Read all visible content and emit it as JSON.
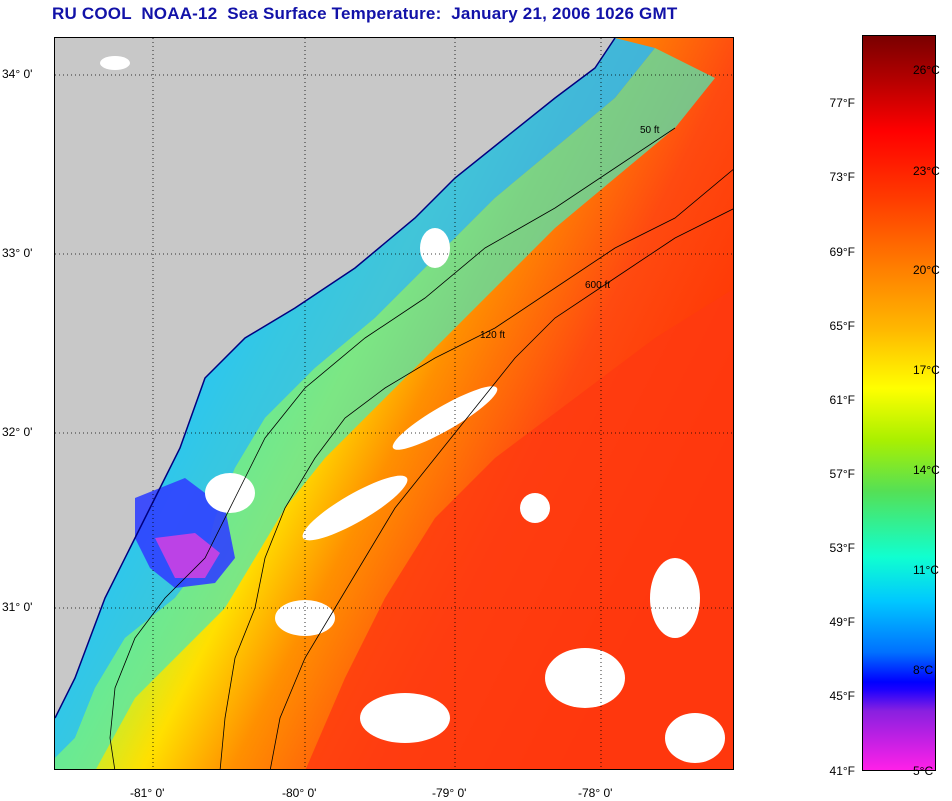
{
  "title": "RU COOL  NOAA-12  Sea Surface Temperature:  January 21, 2006 1026 GMT",
  "map": {
    "latitude_labels": [
      "34° 0'",
      "33° 0'",
      "32° 0'",
      "31° 0'"
    ],
    "longitude_labels": [
      "-81° 0'",
      "-80° 0'",
      "-79° 0'",
      "-78° 0'"
    ],
    "isobath_labels": [
      "50 ft",
      "120 ft",
      "600 ft"
    ],
    "colors": {
      "land": "#c8c8c8",
      "cloud": "#ffffff",
      "coast": "#000080",
      "contour": "#000000",
      "grid": "#000000"
    }
  },
  "colorbar": {
    "fahrenheit_labels": [
      "77°F",
      "73°F",
      "69°F",
      "65°F",
      "61°F",
      "57°F",
      "53°F",
      "49°F",
      "45°F",
      "41°F"
    ],
    "celsius_labels": [
      "26°C",
      "23°C",
      "20°C",
      "17°C",
      "14°C",
      "11°C",
      "8°C",
      "5°C"
    ]
  }
}
